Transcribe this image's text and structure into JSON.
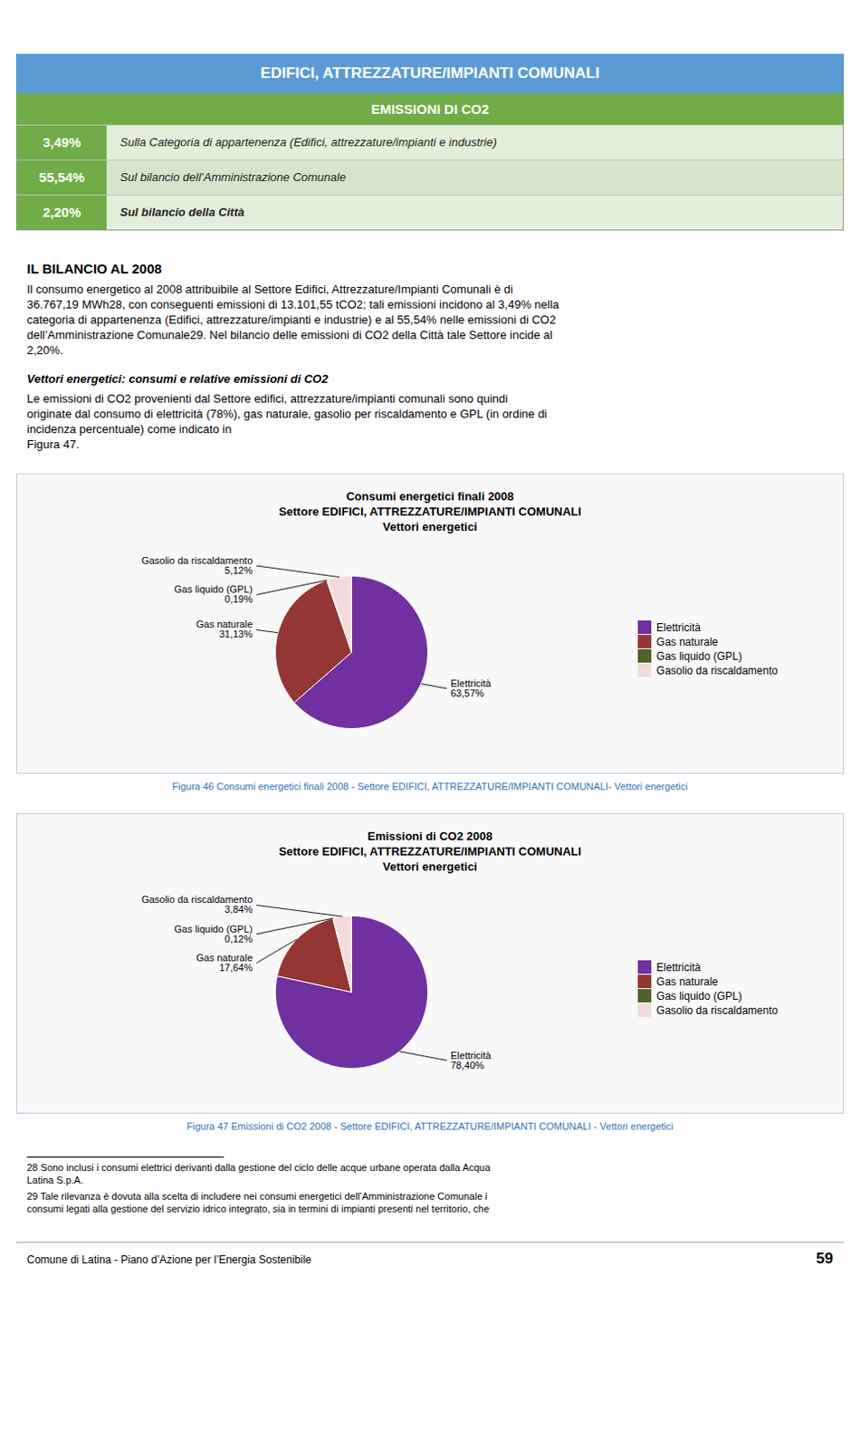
{
  "page": {
    "header": {
      "title": "EDIFICI, ATTREZZATURE/IMPIANTI COMUNALI",
      "color": "#5b9bd5"
    },
    "subheader": {
      "title": "EMISSIONI DI CO2",
      "color": "#70ad47"
    },
    "table": [
      {
        "value": 3.49,
        "label": "3,49%",
        "text": "Sulla Categoria di appartenenza (Edifici, attrezzature/impianti e industrie)",
        "color": "#70ad47",
        "background": "#e2efda"
      },
      {
        "value": 55.54,
        "label": "55,54%",
        "text": "Sul bilancio dell’Amministrazione Comunale",
        "color": "#70ad47",
        "background": "#d6e4cc"
      },
      {
        "value": 2.2,
        "label": "2,20%",
        "text": "Sul bilancio della Città",
        "color": "#70ad47",
        "background": "#e2efda",
        "bold": true
      }
    ],
    "sections": [
      {
        "title": "IL BILANCIO AL 2008",
        "lines": [
          "Il consumo energetico al 2008 attribuibile al Settore Edifici, Attrezzature/Impianti Comunali è di",
          "36.767,19 MWh28, con conseguenti emissioni di 13.101,55 tCO2; tali emissioni incidono al 3,49% nella",
          "categoria di appartenenza (Edifici, attrezzature/impianti e industrie) e al 55,54% nelle emissioni di CO2",
          "dell’Amministrazione Comunale29. Nel bilancio delle emissioni di CO2 della Città tale Settore incide al",
          "2,20%."
        ]
      },
      {
        "title": "Vettori energetici: consumi e relative emissioni di CO2",
        "lines": [
          "Le emissioni di CO2 provenienti dal Settore edifici, attrezzature/impianti comunali sono quindi",
          "originate dal consumo di elettricità (78%), gas naturale, gasolio per riscaldamento e GPL (in ordine di",
          "incidenza percentuale) come indicato in",
          "Figura 47."
        ]
      }
    ],
    "caption_color": "#2e75b6",
    "footnotes": [
      [
        "28 Sono inclusi i consumi elettrici derivanti dalla gestione del ciclo delle acque urbane operata dalla Acqua",
        "Latina S.p.A."
      ],
      [
        "29 Tale rilevanza è dovuta alla scelta di includere nei consumi energetici dell’Amministrazione Comunale i",
        "consumi legati alla gestione del servizio idrico integrato, sia in termini di impianti presenti nel territorio, che"
      ]
    ],
    "footer": {
      "text": "Comune di Latina - Piano d’Azione per l’Energia Sostenibile",
      "page": "59"
    }
  },
  "chart_data": [
    {
      "type": "pie",
      "title": "Consumi energetici finali 2008",
      "subtitle": [
        "Settore EDIFICI, ATTREZZATURE/IMPIANTI COMUNALI",
        "Vettori energetici"
      ],
      "categories": [
        "Elettricità",
        "Gas naturale",
        "Gas liquido (GPL)",
        "Gasolio da riscaldamento"
      ],
      "values": [
        63.57,
        31.13,
        0.19,
        5.12
      ],
      "value_labels": [
        "63,57%",
        "31,13%",
        "0,19%",
        "5,12%"
      ],
      "colors": [
        "#7030a0",
        "#943634",
        "#4f6228",
        "#f2dcdb"
      ],
      "data_labels": true,
      "legend": "right",
      "caption": "Figura 46 Consumi energetici finali 2008 - Settore EDIFICI, ATTREZZATURE/IMPIANTI COMUNALI- Vettori energetici"
    },
    {
      "type": "pie",
      "title": "Emissioni di CO2 2008",
      "subtitle": [
        "Settore EDIFICI, ATTREZZATURE/IMPIANTI COMUNALI",
        "Vettori energetici"
      ],
      "categories": [
        "Elettricità",
        "Gas naturale",
        "Gas liquido (GPL)",
        "Gasolio da riscaldamento"
      ],
      "values": [
        78.4,
        17.64,
        0.12,
        3.84
      ],
      "value_labels": [
        "78,40%",
        "17,64%",
        "0,12%",
        "3,84%"
      ],
      "colors": [
        "#7030a0",
        "#943634",
        "#4f6228",
        "#f2dcdb"
      ],
      "data_labels": true,
      "legend": "right",
      "caption": "Figura 47 Emissioni di CO2 2008 - Settore EDIFICI, ATTREZZATURE/IMPIANTI COMUNALI - Vettori energetici"
    }
  ]
}
